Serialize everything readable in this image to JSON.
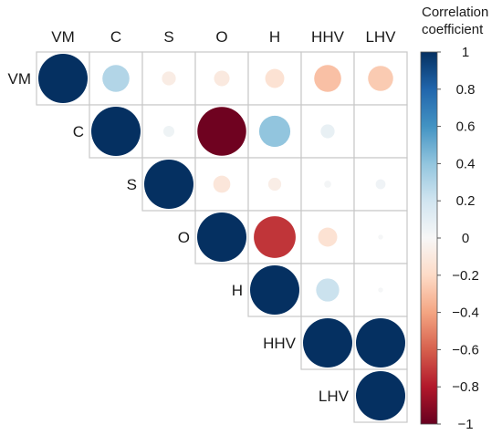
{
  "chart_data": {
    "type": "heatmap",
    "variables": [
      "VM",
      "C",
      "S",
      "O",
      "H",
      "HHV",
      "LHV"
    ],
    "matrix_upper": [
      [
        1.0,
        0.3,
        -0.08,
        -0.1,
        -0.15,
        -0.3,
        -0.26
      ],
      [
        null,
        1.0,
        0.05,
        -0.98,
        0.4,
        0.08,
        0.0
      ],
      [
        null,
        null,
        1.0,
        -0.12,
        -0.07,
        0.02,
        0.04
      ],
      [
        null,
        null,
        null,
        1.0,
        -0.72,
        -0.15,
        0.01
      ],
      [
        null,
        null,
        null,
        null,
        1.0,
        0.22,
        0.01
      ],
      [
        null,
        null,
        null,
        null,
        null,
        1.0,
        1.0
      ],
      [
        null,
        null,
        null,
        null,
        null,
        null,
        1.0
      ]
    ],
    "legend": {
      "title_lines": [
        "Correlation",
        "coefficient"
      ],
      "ticks": [
        1,
        0.8,
        0.6,
        0.4,
        0.2,
        0,
        -0.2,
        -0.4,
        -0.6,
        -0.8,
        -1
      ],
      "tick_labels": [
        "1",
        "0.8",
        "0.6",
        "0.4",
        "0.2",
        "0",
        "−0.2",
        "−0.4",
        "−0.6",
        "−0.8",
        "−1"
      ],
      "range": [
        -1,
        1
      ],
      "colors": [
        "#67001f",
        "#b2182b",
        "#d6604d",
        "#f4a582",
        "#fddbc7",
        "#f7f7f7",
        "#d1e5f0",
        "#92c5de",
        "#4393c3",
        "#2166ac",
        "#053061"
      ]
    }
  }
}
